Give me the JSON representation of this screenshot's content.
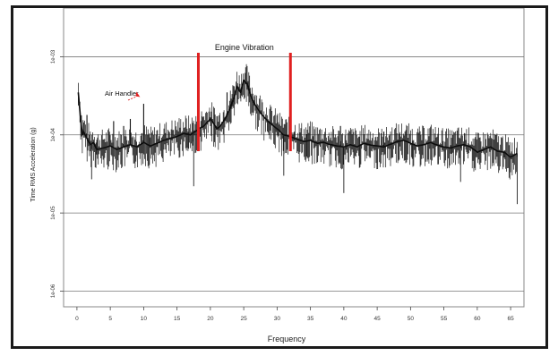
{
  "chart_data": {
    "type": "line",
    "title": "",
    "xlabel": "Frequency",
    "ylabel": "Time RMS Acceleration (g)",
    "xlim": [
      -2,
      67
    ],
    "xticks": [
      0,
      5,
      10,
      15,
      20,
      25,
      30,
      35,
      40,
      45,
      50,
      55,
      60,
      65
    ],
    "y_scale": "log",
    "ylim": [
      6.3e-07,
      0.0042
    ],
    "yticks": [
      {
        "value": 1e-06,
        "label": "1e-06"
      },
      {
        "value": 1e-05,
        "label": "1e-05"
      },
      {
        "value": 0.0001,
        "label": "1e-04"
      },
      {
        "value": 0.001,
        "label": "1e-03"
      }
    ],
    "grid": {
      "horizontal": true,
      "vertical": false
    },
    "series": [
      {
        "color": "#000000",
        "x": [
          0.2,
          0.5,
          0.8,
          1.0,
          1.5,
          2.0,
          2.5,
          3.0,
          4.0,
          5.0,
          6.0,
          7.0,
          8.0,
          9.0,
          10.0,
          11.0,
          12.0,
          13.0,
          14.0,
          15.0,
          16.0,
          17.0,
          18.0,
          19.0,
          20.0,
          20.5,
          21.0,
          21.5,
          22.0,
          22.5,
          23.0,
          23.5,
          24.0,
          24.5,
          25.0,
          25.5,
          26.0,
          26.5,
          27.0,
          28.0,
          29.0,
          30.0,
          31.0,
          32.0,
          33.0,
          34.0,
          35.0,
          36.0,
          37.0,
          38.0,
          39.0,
          40.0,
          41.0,
          42.0,
          43.0,
          44.0,
          45.0,
          46.0,
          47.0,
          48.0,
          49.0,
          50.0,
          51.0,
          52.0,
          53.0,
          54.0,
          55.0,
          56.0,
          57.0,
          58.0,
          59.0,
          60.0,
          61.0,
          62.0,
          63.0,
          64.0,
          65.0,
          66.0
        ],
        "y": [
          0.00035,
          0.00018,
          0.0001,
          0.00011,
          9e-05,
          7.5e-05,
          8e-05,
          6.5e-05,
          6.8e-05,
          7.2e-05,
          6.5e-05,
          7e-05,
          7.5e-05,
          7e-05,
          8e-05,
          7.2e-05,
          7.8e-05,
          8.5e-05,
          9e-05,
          9.5e-05,
          0.000105,
          0.0001,
          0.000115,
          0.00013,
          0.00016,
          0.00014,
          0.00012,
          0.00013,
          0.00015,
          0.00018,
          0.00022,
          0.0003,
          0.00042,
          0.00035,
          0.0005,
          0.00045,
          0.00032,
          0.00026,
          0.00022,
          0.00017,
          0.00014,
          0.00012,
          0.0001,
          9.5e-05,
          8.8e-05,
          8.2e-05,
          8.5e-05,
          7.8e-05,
          8e-05,
          7.5e-05,
          7.2e-05,
          7e-05,
          7.5e-05,
          7e-05,
          7.8e-05,
          7.4e-05,
          7.2e-05,
          7e-05,
          7.6e-05,
          8.2e-05,
          8.5e-05,
          7.8e-05,
          7.2e-05,
          7.5e-05,
          8e-05,
          7.4e-05,
          7e-05,
          6.8e-05,
          7.2e-05,
          7.5e-05,
          7e-05,
          6e-05,
          6.5e-05,
          7e-05,
          6.2e-05,
          6e-05,
          5.2e-05,
          5.8e-05
        ]
      }
    ],
    "spikes": [
      {
        "x": 1.5,
        "y": 0.00018
      },
      {
        "x": 5.5,
        "y": 0.00015
      },
      {
        "x": 7.0,
        "y": 0.00013
      },
      {
        "x": 8.0,
        "y": 0.00016
      },
      {
        "x": 10.0,
        "y": 0.00025
      },
      {
        "x": 22.5,
        "y": 0.00035
      },
      {
        "x": 39.5,
        "y": 0.00013
      },
      {
        "x": 46.0,
        "y": 0.00011
      }
    ],
    "dips": [
      {
        "x": 2.2,
        "y": 2.7e-05
      },
      {
        "x": 17.5,
        "y": 2.2e-05
      },
      {
        "x": 31.0,
        "y": 3e-05
      },
      {
        "x": 40.0,
        "y": 1.8e-05
      },
      {
        "x": 57.5,
        "y": 2.5e-05
      },
      {
        "x": 66.0,
        "y": 1.3e-05
      }
    ],
    "annotations": [
      {
        "text": "Engine Vibration",
        "x_range": [
          18.2,
          32.0
        ],
        "color": "#e02020"
      },
      {
        "text": "Air Handler",
        "arrow_to": {
          "x": 9.6,
          "y": 0.00026
        },
        "color": "#e02020"
      }
    ]
  }
}
